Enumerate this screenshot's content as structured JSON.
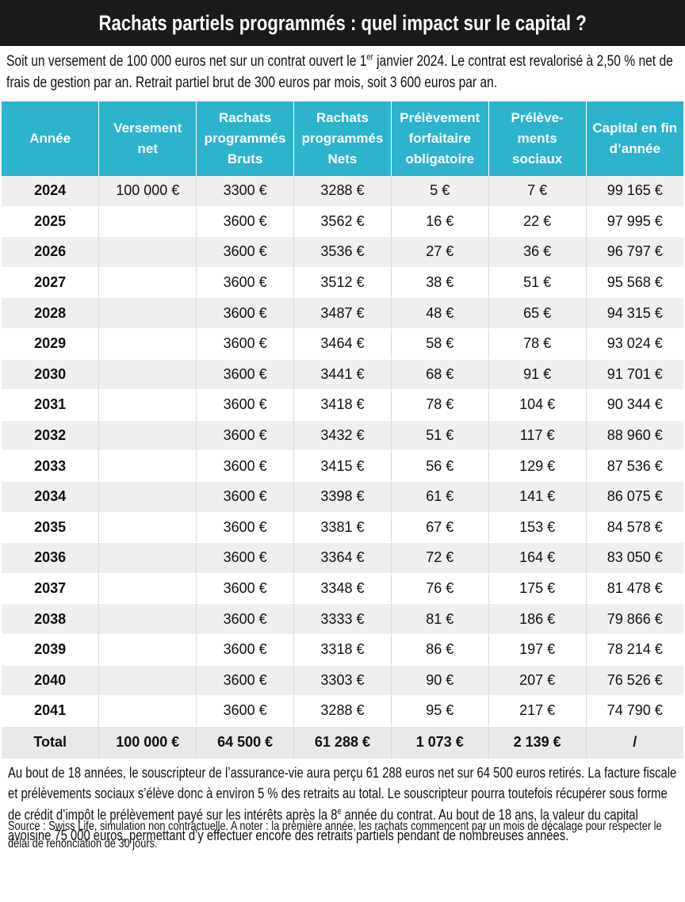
{
  "header": {
    "title": "Rachats partiels programmés : quel impact sur le capital ?"
  },
  "intro": [
    "Soit un versement de 100 000 euros net sur un contrat ouvert le 1",
    "er",
    " janvier 2024. Le contrat est revalorisé à 2,50 % net de frais de gestion par an. Retrait partiel brut de 300 euros par mois, soit 3 600 euros par an."
  ],
  "table": {
    "columns": [
      "Année",
      "Versement net",
      "Rachats programmés Bruts",
      "Rachats programmés Nets",
      "Prélèvement forfaitaire obligatoire",
      "Prélève-ments sociaux",
      "Capital en fin d’année"
    ],
    "rows": [
      [
        "2024",
        "100 000 €",
        "3300 €",
        "3288 €",
        "5 €",
        "7 €",
        "99 165 €"
      ],
      [
        "2025",
        null,
        "3600 €",
        "3562 €",
        "16 €",
        "22 €",
        "97 995 €"
      ],
      [
        "2026",
        null,
        "3600 €",
        "3536 €",
        "27 €",
        "36 €",
        "96 797 €"
      ],
      [
        "2027",
        null,
        "3600 €",
        "3512 €",
        "38 €",
        "51 €",
        "95 568 €"
      ],
      [
        "2028",
        null,
        "3600 €",
        "3487 €",
        "48 €",
        "65 €",
        "94 315 €"
      ],
      [
        "2029",
        null,
        "3600 €",
        "3464 €",
        "58 €",
        "78 €",
        "93 024 €"
      ],
      [
        "2030",
        null,
        "3600 €",
        "3441 €",
        "68 €",
        "91 €",
        "91 701 €"
      ],
      [
        "2031",
        null,
        "3600 €",
        "3418 €",
        "78 €",
        "104 €",
        "90 344 €"
      ],
      [
        "2032",
        null,
        "3600 €",
        "3432 €",
        "51 €",
        "117 €",
        "88 960 €"
      ],
      [
        "2033",
        null,
        "3600 €",
        "3415 €",
        "56 €",
        "129 €",
        "87 536 €"
      ],
      [
        "2034",
        null,
        "3600 €",
        "3398 €",
        "61 €",
        "141 €",
        "86 075 €"
      ],
      [
        "2035",
        null,
        "3600 €",
        "3381 €",
        "67 €",
        "153 €",
        "84 578 €"
      ],
      [
        "2036",
        null,
        "3600 €",
        "3364 €",
        "72 €",
        "164 €",
        "83 050 €"
      ],
      [
        "2037",
        null,
        "3600 €",
        "3348 €",
        "76 €",
        "175 €",
        "81 478 €"
      ],
      [
        "2038",
        null,
        "3600 €",
        "3333 €",
        "81 €",
        "186 €",
        "79 866 €"
      ],
      [
        "2039",
        null,
        "3600 €",
        "3318 €",
        "86 €",
        "197 €",
        "78 214 €"
      ],
      [
        "2040",
        null,
        "3600 €",
        "3303 €",
        "90 €",
        "207 €",
        "76 526 €"
      ],
      [
        "2041",
        null,
        "3600 €",
        "3288 €",
        "95 €",
        "217 €",
        "74 790 €"
      ]
    ],
    "total": [
      "Total",
      "100 000 €",
      "64 500 €",
      "61 288 €",
      "1 073 €",
      "2 139 €",
      "/"
    ]
  },
  "note": [
    "Au bout de 18 années, le souscripteur de l’assurance-vie aura perçu 61 288 euros net sur 64 500 euros retirés. La facture fiscale et prélèvements sociaux s’élève donc à environ 5 % des retraits au total. Le souscripteur pourra toutefois récupérer sous forme de crédit d’impôt le prélèvement payé sur les intérêts après la 8",
    "e",
    " année du contrat. Au bout de 18 ans, la valeur du capital avoisine 75 000 euros, permettant d’y effectuer encore des retraits partiels pendant de nombreuses années."
  ],
  "source": "Source : Swiss Life, simulation non contractuelle. A noter : la première année, les rachats commencent par un mois de décalage pour respecter le délai de renonciation de 30 jours."
}
